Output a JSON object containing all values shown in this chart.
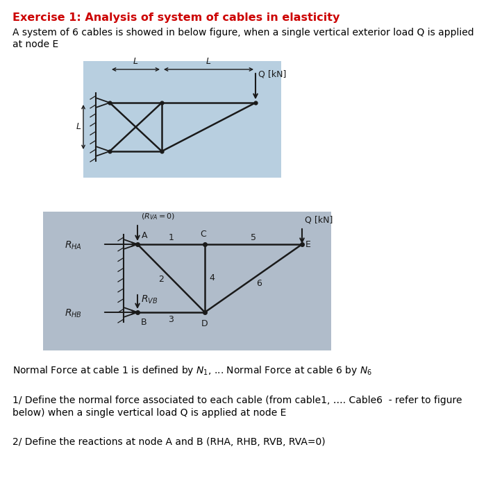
{
  "title": "Exercise 1: Analysis of system of cables in elasticity",
  "title_color": "#cc0000",
  "description_line1": "A system of 6 cables is showed in below figure, when a single vertical exterior load Q is applied",
  "description_line2": "at node E",
  "bg_color1": "#b8cfe0",
  "bg_color2": "#b0bcca",
  "line_color": "#1a1a1a",
  "lw": 1.8
}
